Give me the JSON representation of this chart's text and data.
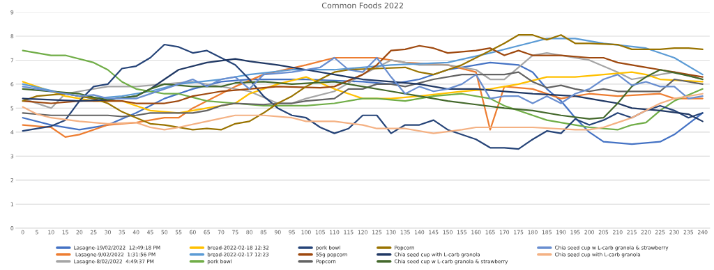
{
  "chart_data": {
    "type": "line",
    "title": "Common Foods 2022",
    "xlim": [
      -2.5,
      242.5
    ],
    "xticks": [
      0,
      5,
      10,
      15,
      20,
      25,
      30,
      35,
      40,
      45,
      50,
      55,
      60,
      65,
      70,
      75,
      80,
      85,
      90,
      95,
      100,
      105,
      110,
      115,
      120,
      125,
      130,
      135,
      140,
      145,
      150,
      155,
      160,
      165,
      170,
      175,
      180,
      185,
      190,
      195,
      200,
      205,
      210,
      215,
      220,
      225,
      230,
      235,
      240
    ],
    "ylim": [
      0,
      9
    ],
    "yticks": [
      0,
      1,
      2,
      3,
      4,
      5,
      6,
      7,
      8,
      9
    ],
    "grid": "y",
    "legend": "bottom",
    "marker": "none",
    "line_style": "solid",
    "series": [
      {
        "name": "Lasagne-19/02/2022  12:49:18 PM",
        "color": "#4472c4",
        "x": [
          0,
          10,
          20,
          30,
          40,
          50,
          60,
          70,
          80,
          100,
          120,
          130,
          140,
          150,
          165,
          175,
          180,
          185,
          190,
          195,
          200,
          205,
          215,
          225,
          230,
          240
        ],
        "values": [
          4.6,
          4.3,
          4.1,
          4.3,
          4.8,
          5.4,
          5.8,
          6.1,
          6.2,
          6.2,
          6.1,
          6.0,
          6.2,
          6.6,
          6.9,
          6.8,
          6.5,
          5.8,
          5.3,
          4.6,
          4.0,
          3.6,
          3.5,
          3.6,
          3.9,
          4.8
        ]
      },
      {
        "name": " Lasagne-9/02/2022  1:31:56 PM",
        "color": "#ed7d31",
        "x": [
          0,
          10,
          15,
          20,
          30,
          40,
          50,
          55,
          60,
          70,
          75,
          85,
          100,
          110,
          125,
          135,
          150,
          160,
          165,
          170,
          180,
          190,
          200,
          210,
          225,
          230,
          240
        ],
        "values": [
          4.3,
          4.2,
          3.8,
          3.9,
          4.3,
          4.4,
          4.6,
          4.6,
          5.0,
          5.6,
          5.9,
          6.4,
          6.8,
          7.1,
          7.1,
          6.9,
          6.8,
          6.5,
          4.1,
          5.9,
          5.8,
          5.4,
          5.6,
          5.5,
          5.6,
          5.4,
          5.4
        ]
      },
      {
        "name": "Lasagne-8/02/2022  4:49:37 PM",
        "color": "#a5a5a5",
        "x": [
          0,
          10,
          15,
          20,
          30,
          40,
          60,
          80,
          90,
          95,
          100,
          110,
          120,
          130,
          140,
          150,
          160,
          165,
          170,
          175,
          180,
          185,
          195,
          200,
          210,
          215,
          225,
          230,
          240
        ],
        "values": [
          5.4,
          5.0,
          5.6,
          5.7,
          5.9,
          5.9,
          6.1,
          5.7,
          5.2,
          5.2,
          5.4,
          5.7,
          6.4,
          7.0,
          6.8,
          6.8,
          6.6,
          6.2,
          6.2,
          6.7,
          7.2,
          7.3,
          7.1,
          7.0,
          6.5,
          6.2,
          6.4,
          6.5,
          6.2
        ]
      },
      {
        "name": "bread-2022-02-18 12:32",
        "color": "#ffc000",
        "x": [
          0,
          15,
          25,
          35,
          40,
          45,
          55,
          65,
          75,
          80,
          90,
          100,
          110,
          120,
          130,
          140,
          155,
          165,
          175,
          185,
          195,
          205,
          215,
          220,
          225,
          240
        ],
        "values": [
          6.1,
          5.5,
          5.3,
          5.3,
          5.1,
          4.9,
          4.8,
          5.0,
          5.2,
          5.6,
          6.0,
          6.3,
          5.8,
          5.4,
          5.4,
          5.5,
          5.7,
          5.8,
          6.0,
          6.3,
          6.3,
          6.4,
          6.5,
          6.4,
          6.2,
          6.1
        ]
      },
      {
        "name": "bread-2022-02-17 12:23",
        "color": "#5b9bd5",
        "x": [
          0,
          15,
          25,
          35,
          45,
          55,
          70,
          80,
          95,
          110,
          130,
          150,
          165,
          175,
          185,
          195,
          205,
          220,
          230,
          240
        ],
        "values": [
          6.0,
          5.6,
          5.4,
          5.5,
          5.7,
          6.0,
          6.2,
          6.4,
          6.6,
          6.6,
          6.8,
          6.9,
          7.3,
          7.6,
          7.9,
          7.9,
          7.7,
          7.5,
          7.1,
          6.4
        ]
      },
      {
        "name": "pork bowl",
        "color": "#70ad47",
        "x": [
          0,
          10,
          15,
          25,
          30,
          35,
          40,
          50,
          55,
          65,
          75,
          85,
          100,
          110,
          120,
          125,
          135,
          145,
          155,
          165,
          170,
          180,
          185,
          195,
          200,
          210,
          215,
          220,
          225,
          230,
          240
        ],
        "values": [
          7.4,
          7.2,
          7.2,
          6.9,
          6.6,
          6.1,
          5.8,
          5.6,
          5.6,
          5.3,
          5.2,
          5.1,
          5.1,
          5.2,
          5.4,
          5.4,
          5.3,
          5.5,
          5.6,
          5.4,
          5.1,
          4.7,
          4.5,
          4.3,
          4.2,
          4.1,
          4.3,
          4.4,
          4.9,
          5.3,
          5.8
        ]
      },
      {
        "name": "pork bowl",
        "color": "#264478",
        "x": [
          0,
          10,
          15,
          20,
          25,
          30,
          35,
          40,
          45,
          50,
          55,
          60,
          65,
          70,
          75,
          80,
          85,
          90,
          95,
          100,
          105,
          110,
          115,
          120,
          125,
          130,
          135,
          140,
          145,
          150,
          160,
          165,
          170,
          175,
          180,
          185,
          190,
          195,
          200,
          205,
          210,
          215,
          220,
          225,
          230,
          235,
          240
        ],
        "values": [
          4.05,
          4.25,
          4.5,
          5.3,
          5.9,
          6.0,
          6.65,
          6.75,
          7.1,
          7.65,
          7.55,
          7.3,
          7.4,
          7.1,
          6.8,
          6.2,
          5.5,
          5.0,
          4.7,
          4.6,
          4.2,
          3.95,
          4.15,
          4.7,
          4.7,
          3.95,
          4.3,
          4.3,
          4.5,
          4.1,
          3.7,
          3.35,
          3.35,
          3.3,
          3.7,
          4.05,
          3.95,
          4.55,
          4.3,
          4.5,
          4.8,
          4.6,
          4.9,
          5.1,
          4.9,
          4.6,
          4.8
        ]
      },
      {
        "name": "55g popcorn",
        "color": "#9e480e",
        "x": [
          0,
          10,
          20,
          35,
          40,
          50,
          55,
          60,
          65,
          70,
          80,
          90,
          105,
          110,
          120,
          125,
          130,
          135,
          140,
          145,
          150,
          155,
          160,
          165,
          170,
          175,
          180,
          190,
          200,
          205,
          210,
          215,
          220,
          225,
          230,
          235,
          240
        ],
        "values": [
          5.3,
          5.2,
          5.3,
          5.3,
          5.2,
          5.2,
          5.3,
          5.5,
          5.6,
          5.7,
          5.8,
          5.9,
          5.85,
          5.9,
          6.4,
          6.8,
          7.4,
          7.45,
          7.6,
          7.5,
          7.3,
          7.35,
          7.4,
          7.5,
          7.2,
          7.4,
          7.2,
          7.2,
          7.1,
          7.1,
          6.9,
          6.8,
          6.7,
          6.6,
          6.5,
          6.4,
          6.3
        ]
      },
      {
        "name": "Popcorn",
        "color": "#636363",
        "x": [
          0,
          10,
          20,
          30,
          35,
          40,
          45,
          55,
          60,
          65,
          70,
          75,
          85,
          90,
          95,
          100,
          110,
          115,
          120,
          125,
          130,
          135,
          145,
          155,
          170,
          175,
          180,
          185,
          190,
          195,
          200,
          205,
          210,
          225,
          230,
          235,
          240
        ],
        "values": [
          4.8,
          4.7,
          4.7,
          4.7,
          4.65,
          4.7,
          4.8,
          4.8,
          4.8,
          4.9,
          5.1,
          5.2,
          5.15,
          5.2,
          5.2,
          5.3,
          5.4,
          5.8,
          5.8,
          6.0,
          6.0,
          5.9,
          6.2,
          6.4,
          6.4,
          6.5,
          6.1,
          5.85,
          5.95,
          5.8,
          5.7,
          5.8,
          5.7,
          5.7,
          6.2,
          6.1,
          6.0
        ]
      },
      {
        "name": "Popcorn",
        "color": "#997300",
        "x": [
          0,
          5,
          15,
          25,
          30,
          35,
          40,
          45,
          50,
          55,
          60,
          65,
          70,
          75,
          80,
          85,
          90,
          95,
          100,
          105,
          110,
          115,
          125,
          135,
          140,
          145,
          150,
          155,
          160,
          165,
          170,
          175,
          180,
          185,
          190,
          195,
          200,
          210,
          215,
          225,
          230,
          235,
          240
        ],
        "values": [
          5.3,
          5.5,
          5.6,
          5.4,
          5.2,
          4.85,
          4.6,
          4.35,
          4.3,
          4.2,
          4.1,
          4.15,
          4.1,
          4.35,
          4.45,
          4.8,
          5.2,
          5.5,
          5.9,
          6.2,
          6.5,
          6.6,
          6.65,
          6.7,
          6.5,
          6.4,
          6.6,
          6.8,
          7.1,
          7.4,
          7.7,
          8.05,
          8.05,
          7.85,
          8.05,
          7.7,
          7.7,
          7.65,
          7.45,
          7.45,
          7.5,
          7.5,
          7.45
        ]
      },
      {
        "name": "Chia seed cup with L-carb granola",
        "color": "#203864",
        "x": [
          0,
          10,
          20,
          30,
          40,
          45,
          50,
          55,
          65,
          75,
          80,
          90,
          100,
          110,
          120,
          130,
          140,
          150,
          160,
          170,
          180,
          195,
          205,
          210,
          215,
          225,
          235,
          240
        ],
        "values": [
          5.4,
          5.35,
          5.3,
          5.35,
          5.5,
          5.8,
          6.2,
          6.6,
          6.9,
          7.05,
          6.95,
          6.8,
          6.6,
          6.4,
          6.2,
          6.1,
          6.0,
          5.8,
          5.8,
          5.7,
          5.6,
          5.5,
          5.3,
          5.2,
          5.0,
          4.9,
          4.75,
          4.45
        ]
      },
      {
        "name": "Chia seed cup w L-carb granola & strawberry",
        "color": "#43682b",
        "x": [
          0,
          10,
          20,
          25,
          30,
          40,
          45,
          50,
          60,
          70,
          75,
          85,
          95,
          110,
          120,
          130,
          140,
          150,
          160,
          170,
          180,
          190,
          200,
          205,
          210,
          215,
          220,
          225,
          235,
          240
        ],
        "values": [
          5.8,
          5.7,
          5.6,
          5.45,
          5.35,
          5.5,
          5.8,
          6.0,
          5.9,
          5.9,
          6.05,
          6.1,
          6.0,
          6.1,
          5.9,
          5.7,
          5.5,
          5.3,
          5.15,
          5.0,
          4.9,
          4.7,
          4.55,
          4.6,
          5.2,
          5.9,
          6.3,
          6.6,
          6.35,
          6.2
        ]
      },
      {
        "name": "Chia seed cup w L-carb granola & strawberry",
        "color": "#698ed0",
        "x": [
          0,
          10,
          20,
          25,
          30,
          40,
          50,
          55,
          60,
          65,
          70,
          75,
          80,
          85,
          95,
          105,
          110,
          115,
          120,
          125,
          130,
          135,
          140,
          145,
          150,
          155,
          160,
          165,
          170,
          175,
          180,
          185,
          190,
          195,
          200,
          205,
          210,
          215,
          220,
          225,
          230,
          235,
          240
        ],
        "values": [
          5.9,
          5.7,
          5.5,
          5.55,
          5.4,
          5.4,
          5.8,
          6.0,
          6.2,
          5.9,
          6.2,
          6.3,
          5.8,
          6.4,
          6.5,
          6.7,
          7.1,
          6.6,
          6.5,
          7.1,
          6.3,
          5.6,
          5.9,
          5.7,
          5.8,
          6.0,
          6.4,
          5.4,
          5.5,
          5.5,
          5.2,
          5.5,
          5.2,
          5.6,
          5.8,
          6.2,
          6.4,
          5.95,
          6.1,
          5.9,
          5.9,
          5.4,
          5.5
        ]
      },
      {
        "name": "Chia seed cup with L-carb granola",
        "color": "#f4b183",
        "x": [
          0,
          5,
          10,
          20,
          30,
          40,
          45,
          50,
          55,
          65,
          75,
          85,
          95,
          100,
          110,
          120,
          125,
          135,
          145,
          155,
          160,
          180,
          195,
          200,
          205,
          210,
          215,
          220,
          225,
          230,
          240
        ],
        "values": [
          5.05,
          4.75,
          4.6,
          4.45,
          4.35,
          4.4,
          4.2,
          4.1,
          4.2,
          4.45,
          4.7,
          4.7,
          4.6,
          4.45,
          4.45,
          4.3,
          4.15,
          4.15,
          3.95,
          4.1,
          4.2,
          4.2,
          4.1,
          4.1,
          4.2,
          4.4,
          4.6,
          4.9,
          5.2,
          5.4,
          5.6
        ]
      }
    ]
  }
}
